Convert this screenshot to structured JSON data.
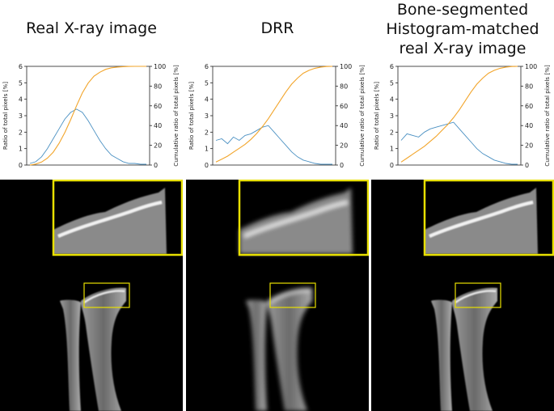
{
  "panels": [
    {
      "title_lines": [
        "Real X-ray image"
      ]
    },
    {
      "title_lines": [
        "DRR"
      ]
    },
    {
      "title_lines": [
        "Bone-segmented",
        "Histogram-matched",
        "real X-ray image"
      ]
    }
  ],
  "chart_data": [
    {
      "type": "line",
      "ylabel_left": "Ratio of total pixels [%]",
      "ylabel_right": "Cumulative ratio of total pixels [%]",
      "ylim_left": [
        0,
        6
      ],
      "ylim_right": [
        0,
        100
      ],
      "yticks_left": [
        "0",
        "1",
        "2",
        "3",
        "4",
        "5",
        "6"
      ],
      "yticks_right": [
        "0",
        "20",
        "40",
        "60",
        "80",
        "100"
      ],
      "series": [
        {
          "values": [
            0.1,
            0.2,
            0.5,
            1.0,
            1.6,
            2.2,
            2.8,
            3.2,
            3.4,
            3.2,
            2.7,
            2.1,
            1.5,
            1.0,
            0.6,
            0.4,
            0.2,
            0.1,
            0.1,
            0.05,
            0.05
          ]
        },
        {
          "values": [
            0,
            1,
            3,
            7,
            13,
            22,
            33,
            46,
            60,
            73,
            83,
            90,
            94,
            97,
            98.5,
            99.3,
            99.7,
            99.9,
            100,
            100,
            100
          ]
        }
      ],
      "colors": [
        "#4a90c2",
        "#f2a52b"
      ]
    },
    {
      "type": "line",
      "ylabel_left": "Ratio of total pixels [%]",
      "ylabel_right": "Cumulative ratio of total pixels [%]",
      "ylim_left": [
        0,
        6
      ],
      "ylim_right": [
        0,
        100
      ],
      "yticks_left": [
        "0",
        "1",
        "2",
        "3",
        "4",
        "5",
        "6"
      ],
      "yticks_right": [
        "0",
        "20",
        "40",
        "60",
        "80",
        "100"
      ],
      "series": [
        {
          "values": [
            1.5,
            1.6,
            1.3,
            1.7,
            1.5,
            1.8,
            1.9,
            2.1,
            2.3,
            2.4,
            2.0,
            1.6,
            1.2,
            0.8,
            0.5,
            0.3,
            0.2,
            0.1,
            0.05,
            0.05,
            0.05
          ]
        },
        {
          "values": [
            3,
            6,
            9,
            13,
            17,
            21,
            26,
            32,
            39,
            47,
            56,
            65,
            74,
            82,
            88,
            93,
            96,
            98,
            99.3,
            99.8,
            100
          ]
        }
      ],
      "colors": [
        "#4a90c2",
        "#f2a52b"
      ]
    },
    {
      "type": "line",
      "ylabel_left": "Ratio of total pixels [%]",
      "ylabel_right": "Cumulative ratio of total pixels [%]",
      "ylim_left": [
        0,
        6
      ],
      "ylim_right": [
        0,
        100
      ],
      "yticks_left": [
        "0",
        "1",
        "2",
        "3",
        "4",
        "5",
        "6"
      ],
      "yticks_right": [
        "0",
        "20",
        "40",
        "60",
        "80",
        "100"
      ],
      "series": [
        {
          "values": [
            1.5,
            1.9,
            1.8,
            1.7,
            2.0,
            2.2,
            2.3,
            2.4,
            2.5,
            2.6,
            2.2,
            1.8,
            1.4,
            1.0,
            0.7,
            0.5,
            0.3,
            0.2,
            0.1,
            0.05,
            0.05
          ]
        },
        {
          "values": [
            3,
            7,
            11,
            15,
            19,
            24,
            29,
            35,
            41,
            48,
            56,
            65,
            74,
            82,
            88,
            93,
            96,
            98,
            99.3,
            99.8,
            100
          ]
        }
      ],
      "colors": [
        "#4a90c2",
        "#f2a52b"
      ]
    }
  ],
  "colors": {
    "highlight_box": "#e8e000",
    "xray_background": "#000000"
  }
}
